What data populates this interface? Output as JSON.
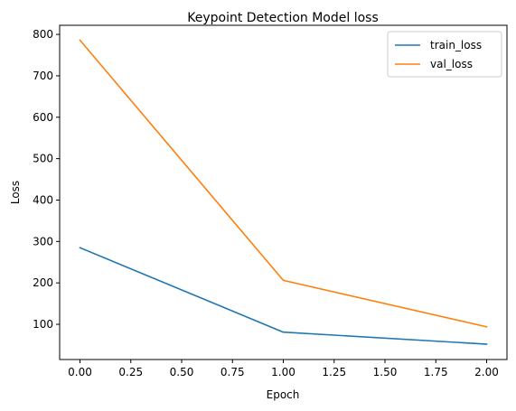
{
  "chart_data": {
    "type": "line",
    "title": "Keypoint Detection Model loss",
    "xlabel": "Epoch",
    "ylabel": "Loss",
    "x": [
      0,
      1,
      2
    ],
    "series": [
      {
        "name": "train_loss",
        "color": "#1f77b4",
        "values": [
          285,
          81,
          52
        ]
      },
      {
        "name": "val_loss",
        "color": "#ff7f0e",
        "values": [
          786,
          206,
          94
        ]
      }
    ],
    "xlim": [
      -0.1,
      2.1
    ],
    "ylim": [
      15,
      822
    ],
    "xticks": [
      0,
      0.25,
      0.5,
      0.75,
      1,
      1.25,
      1.5,
      1.75,
      2
    ],
    "xtick_labels": [
      "0.00",
      "0.25",
      "0.50",
      "0.75",
      "1.00",
      "1.25",
      "1.50",
      "1.75",
      "2.00"
    ],
    "yticks": [
      100,
      200,
      300,
      400,
      500,
      600,
      700,
      800
    ],
    "ytick_labels": [
      "100",
      "200",
      "300",
      "400",
      "500",
      "600",
      "700",
      "800"
    ],
    "grid": false,
    "legend_position": "top-right"
  }
}
